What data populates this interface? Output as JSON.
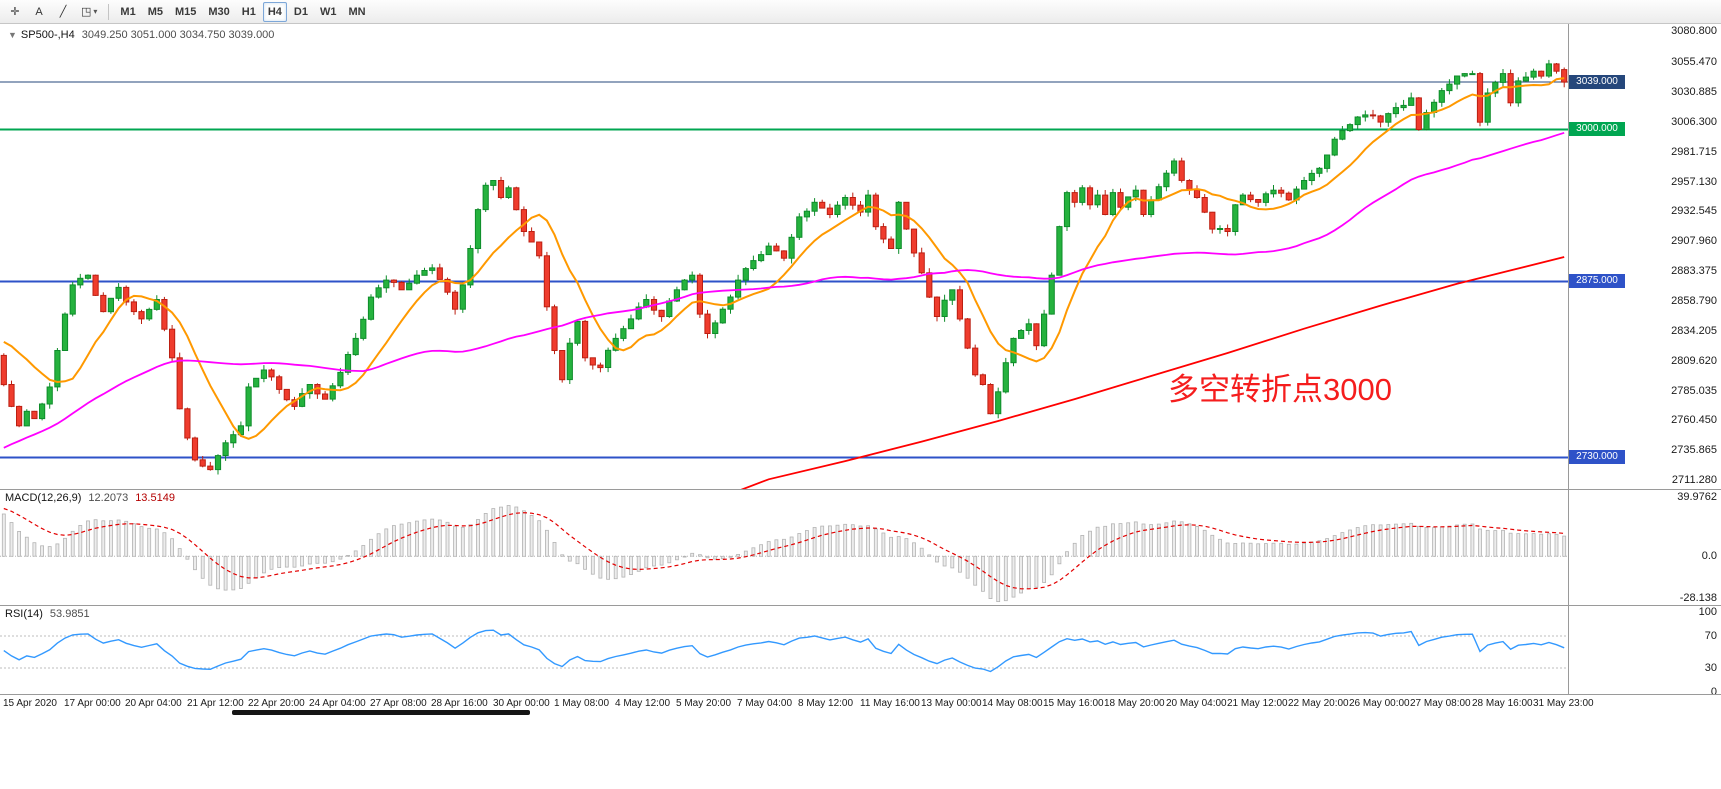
{
  "toolbar": {
    "tools": [
      {
        "name": "crosshair-icon",
        "glyph": "✛"
      },
      {
        "name": "text-label-icon",
        "glyph": "A"
      },
      {
        "name": "trendline-icon",
        "glyph": "╱"
      },
      {
        "name": "shapes-dropdown-icon",
        "glyph": "◳",
        "dropdown": "▾"
      }
    ],
    "timeframes": [
      "M1",
      "M5",
      "M15",
      "M30",
      "H1",
      "H4",
      "D1",
      "W1",
      "MN"
    ],
    "active_timeframe": "H4"
  },
  "chart": {
    "symbol_label": "SP500-,H4",
    "ohlc_label": "3049.250 3051.000 3034.750 3039.000",
    "annotation": {
      "text": "多空转折点3000",
      "color": "#f51d1d"
    }
  },
  "price_axis": {
    "ticks": [
      "3080.800",
      "3055.470",
      "3030.885",
      "3006.300",
      "2981.715",
      "2957.130",
      "2932.545",
      "2907.960",
      "2883.375",
      "2858.790",
      "2834.205",
      "2809.620",
      "2785.035",
      "2760.450",
      "2735.865",
      "2711.280"
    ],
    "badges": [
      {
        "label": "3039.000",
        "price": 3039.0,
        "color": "#25477b"
      },
      {
        "label": "3000.000",
        "price": 3000.0,
        "color": "#00a651"
      },
      {
        "label": "2875.000",
        "price": 2875.0,
        "color": "#2e52c8"
      },
      {
        "label": "2730.000",
        "price": 2730.0,
        "color": "#2e52c8"
      }
    ]
  },
  "time_axis": {
    "labels": [
      "15 Apr 2020",
      "17 Apr 00:00",
      "20 Apr 04:00",
      "21 Apr 12:00",
      "22 Apr 20:00",
      "24 Apr 04:00",
      "27 Apr 08:00",
      "28 Apr 16:00",
      "30 Apr 00:00",
      "1 May 08:00",
      "4 May 12:00",
      "5 May 20:00",
      "7 May 04:00",
      "8 May 12:00",
      "11 May 16:00",
      "13 May 00:00",
      "14 May 08:00",
      "15 May 16:00",
      "18 May 20:00",
      "20 May 04:00",
      "21 May 12:00",
      "22 May 20:00",
      "26 May 00:00",
      "27 May 08:00",
      "28 May 16:00",
      "31 May 23:00"
    ]
  },
  "macd_panel": {
    "label": "MACD(12,26,9)",
    "value_main": "12.2073",
    "value_signal": "13.5149",
    "axis_labels": [
      "39.9762",
      "0.0",
      "-28.138"
    ],
    "axis_values": [
      39.9762,
      0,
      -28.138
    ]
  },
  "rsi_panel": {
    "label": "RSI(14)",
    "value": "53.9851",
    "axis_labels": [
      "100",
      "70",
      "30",
      "0"
    ],
    "axis_values": [
      100,
      70,
      30,
      0
    ],
    "levels": [
      70,
      30
    ]
  },
  "chart_data": {
    "type": "candlestick",
    "symbol": "SP500-",
    "timeframe": "H4",
    "current_ohlc": {
      "open": 3049.25,
      "high": 3051.0,
      "low": 3034.75,
      "close": 3039.0
    },
    "candle_count": 205,
    "candles_per_label": 8,
    "price_range": [
      2704,
      3086
    ],
    "macd_range": [
      -28.138,
      39.9762
    ],
    "rsi_range": [
      0,
      100
    ],
    "colors": {
      "up_fill": "#25b23e",
      "up_stroke": "#0e8c2a",
      "down_fill": "#ef3c2d",
      "down_stroke": "#bc1f12",
      "ma_fast": "#ff9900",
      "ma_mid": "#ff00ff",
      "ma_slow": "#ff0000",
      "macd_histogram": "#b3b3b3",
      "macd_signal": "#e30000",
      "rsi_line": "#3399ff"
    },
    "horizontal_lines": [
      {
        "price": 3039.0,
        "color": "#25477b",
        "width": 1,
        "role": "current-price-line"
      },
      {
        "price": 3000.0,
        "color": "#00a651",
        "width": 2,
        "role": "pivot-line-3000"
      },
      {
        "price": 2875.0,
        "color": "#2e52c8",
        "width": 2,
        "role": "resistance-2875"
      },
      {
        "price": 2730.0,
        "color": "#2e52c8",
        "width": 2,
        "role": "support-2730"
      }
    ],
    "moving_averages": [
      {
        "name": "fast-ma",
        "period": 10,
        "color": "#ff9900"
      },
      {
        "name": "mid-ma",
        "period": 48,
        "color": "#ff00ff"
      },
      {
        "name": "slow-ma",
        "color": "#ff0000"
      }
    ],
    "close_anchors": [
      [
        0,
        2790
      ],
      [
        1,
        2772
      ],
      [
        2,
        2756
      ],
      [
        3,
        2768
      ],
      [
        4,
        2762
      ],
      [
        5,
        2774
      ],
      [
        6,
        2788
      ],
      [
        7,
        2818
      ],
      [
        8,
        2848
      ],
      [
        9,
        2872
      ],
      [
        11,
        2880
      ],
      [
        13,
        2850
      ],
      [
        15,
        2870
      ],
      [
        16,
        2858
      ],
      [
        18,
        2844
      ],
      [
        20,
        2860
      ],
      [
        22,
        2812
      ],
      [
        23,
        2770
      ],
      [
        24,
        2746
      ],
      [
        25,
        2728
      ],
      [
        27,
        2720
      ],
      [
        29,
        2742
      ],
      [
        31,
        2756
      ],
      [
        32,
        2788
      ],
      [
        34,
        2802
      ],
      [
        36,
        2786
      ],
      [
        38,
        2772
      ],
      [
        40,
        2790
      ],
      [
        42,
        2778
      ],
      [
        44,
        2800
      ],
      [
        46,
        2828
      ],
      [
        48,
        2862
      ],
      [
        50,
        2876
      ],
      [
        52,
        2868
      ],
      [
        54,
        2880
      ],
      [
        56,
        2886
      ],
      [
        58,
        2866
      ],
      [
        59,
        2852
      ],
      [
        60,
        2872
      ],
      [
        61,
        2902
      ],
      [
        62,
        2934
      ],
      [
        63,
        2954
      ],
      [
        64,
        2958
      ],
      [
        65,
        2944
      ],
      [
        66,
        2952
      ],
      [
        67,
        2934
      ],
      [
        68,
        2916
      ],
      [
        70,
        2896
      ],
      [
        71,
        2854
      ],
      [
        72,
        2818
      ],
      [
        73,
        2794
      ],
      [
        74,
        2824
      ],
      [
        75,
        2842
      ],
      [
        76,
        2812
      ],
      [
        78,
        2804
      ],
      [
        80,
        2828
      ],
      [
        82,
        2844
      ],
      [
        84,
        2860
      ],
      [
        86,
        2846
      ],
      [
        88,
        2868
      ],
      [
        90,
        2880
      ],
      [
        91,
        2848
      ],
      [
        92,
        2832
      ],
      [
        94,
        2852
      ],
      [
        96,
        2876
      ],
      [
        98,
        2892
      ],
      [
        100,
        2904
      ],
      [
        102,
        2894
      ],
      [
        104,
        2928
      ],
      [
        106,
        2940
      ],
      [
        108,
        2930
      ],
      [
        110,
        2944
      ],
      [
        112,
        2932
      ],
      [
        113,
        2946
      ],
      [
        114,
        2920
      ],
      [
        116,
        2902
      ],
      [
        117,
        2940
      ],
      [
        118,
        2918
      ],
      [
        120,
        2882
      ],
      [
        121,
        2862
      ],
      [
        122,
        2846
      ],
      [
        124,
        2868
      ],
      [
        125,
        2844
      ],
      [
        126,
        2820
      ],
      [
        127,
        2798
      ],
      [
        128,
        2790
      ],
      [
        129,
        2766
      ],
      [
        130,
        2784
      ],
      [
        131,
        2808
      ],
      [
        132,
        2828
      ],
      [
        134,
        2840
      ],
      [
        135,
        2822
      ],
      [
        136,
        2848
      ],
      [
        137,
        2880
      ],
      [
        138,
        2920
      ],
      [
        139,
        2948
      ],
      [
        140,
        2940
      ],
      [
        141,
        2952
      ],
      [
        142,
        2938
      ],
      [
        143,
        2946
      ],
      [
        144,
        2930
      ],
      [
        145,
        2948
      ],
      [
        146,
        2936
      ],
      [
        148,
        2950
      ],
      [
        149,
        2930
      ],
      [
        150,
        2942
      ],
      [
        152,
        2964
      ],
      [
        153,
        2974
      ],
      [
        154,
        2958
      ],
      [
        156,
        2944
      ],
      [
        158,
        2918
      ],
      [
        160,
        2916
      ],
      [
        161,
        2938
      ],
      [
        162,
        2946
      ],
      [
        164,
        2940
      ],
      [
        166,
        2950
      ],
      [
        168,
        2942
      ],
      [
        170,
        2958
      ],
      [
        172,
        2968
      ],
      [
        174,
        2992
      ],
      [
        176,
        3004
      ],
      [
        178,
        3012
      ],
      [
        180,
        3006
      ],
      [
        182,
        3018
      ],
      [
        184,
        3026
      ],
      [
        185,
        3000
      ],
      [
        186,
        3014
      ],
      [
        188,
        3032
      ],
      [
        190,
        3044
      ],
      [
        192,
        3046
      ],
      [
        193,
        3006
      ],
      [
        194,
        3030
      ],
      [
        196,
        3046
      ],
      [
        197,
        3022
      ],
      [
        198,
        3040
      ],
      [
        200,
        3048
      ],
      [
        201,
        3044
      ],
      [
        202,
        3054
      ],
      [
        203,
        3048
      ],
      [
        204,
        3039
      ]
    ],
    "ma_slow_anchors": [
      [
        60,
        2620
      ],
      [
        80,
        2664
      ],
      [
        90,
        2688
      ],
      [
        100,
        2712
      ],
      [
        110,
        2727
      ],
      [
        120,
        2743
      ],
      [
        130,
        2760
      ],
      [
        140,
        2778
      ],
      [
        150,
        2797
      ],
      [
        160,
        2816
      ],
      [
        170,
        2836
      ],
      [
        180,
        2855
      ],
      [
        190,
        2873
      ],
      [
        197,
        2884
      ],
      [
        204,
        2895
      ]
    ],
    "indicators": {
      "macd": {
        "fast": 12,
        "slow": 26,
        "signal": 9,
        "current_main": 12.2073,
        "current_signal": 13.5149
      },
      "rsi": {
        "period": 14,
        "current": 53.9851,
        "levels": [
          70,
          30
        ]
      }
    }
  }
}
